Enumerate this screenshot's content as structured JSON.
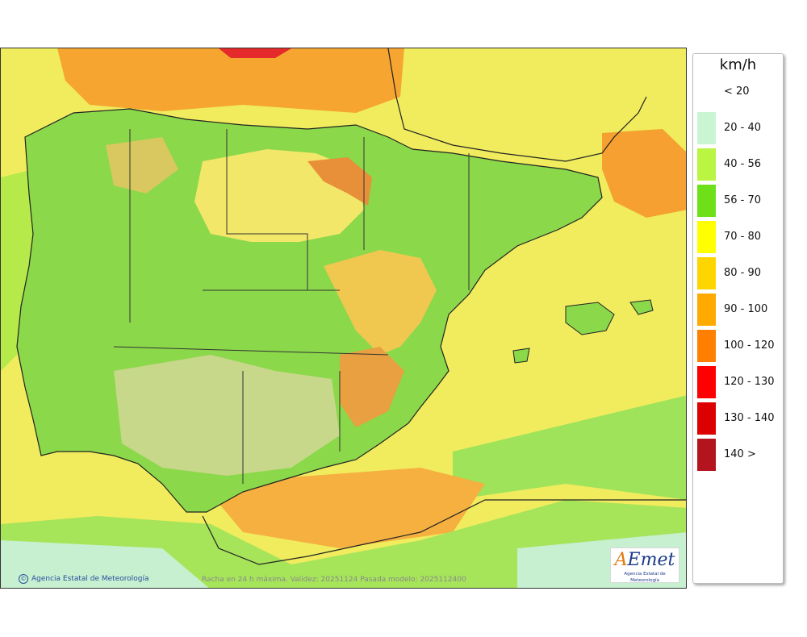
{
  "map": {
    "credit": "Agencia Estatal de Meteorología",
    "caption": "Racha en 24 h máxima. Validez: 20251124 Pasada modelo: 2025112400",
    "logo": {
      "text_a": "A",
      "text_rest": "Emet",
      "subtitle": "Agencia Estatal de Meteorología"
    }
  },
  "legend": {
    "unit": "km/h",
    "items": [
      {
        "label": "< 20",
        "color": "#ffffff"
      },
      {
        "label": "20 - 40",
        "color": "#c9f5d2"
      },
      {
        "label": "40 - 56",
        "color": "#b9f542"
      },
      {
        "label": "56 - 70",
        "color": "#6ee01a"
      },
      {
        "label": "70 - 80",
        "color": "#ffff00"
      },
      {
        "label": "80 - 90",
        "color": "#ffd500"
      },
      {
        "label": "90 - 100",
        "color": "#ffaa00"
      },
      {
        "label": "100 - 120",
        "color": "#ff8000"
      },
      {
        "label": "120 - 130",
        "color": "#ff0000"
      },
      {
        "label": "130 - 140",
        "color": "#dc0000"
      },
      {
        "label": "140 >",
        "color": "#b4141e"
      }
    ]
  }
}
